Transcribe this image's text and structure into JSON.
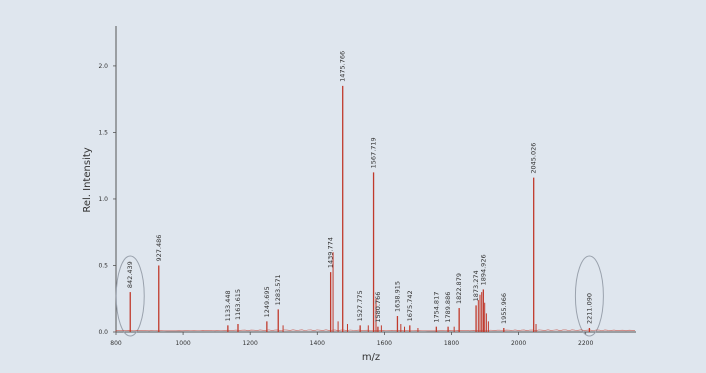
{
  "chart_data": {
    "type": "line",
    "title": "",
    "xlabel": "m/z",
    "ylabel": "Rel. Intensity",
    "xlim": [
      800,
      2350
    ],
    "ylim": [
      0,
      2.3
    ],
    "grid": false,
    "x_ticks": [
      {
        "value": 800,
        "label": "800"
      },
      {
        "value": 1000,
        "label": "1000"
      },
      {
        "value": 1200,
        "label": "1200"
      },
      {
        "value": 1400,
        "label": "1400"
      },
      {
        "value": 1600,
        "label": "1600"
      },
      {
        "value": 1800,
        "label": "1800"
      },
      {
        "value": 2000,
        "label": "2000"
      },
      {
        "value": 2200,
        "label": "2200"
      }
    ],
    "y_ticks": [
      {
        "value": 0.0,
        "label": "0.0"
      },
      {
        "value": 0.5,
        "label": "0.5"
      },
      {
        "value": 1.0,
        "label": "1.0"
      },
      {
        "value": 1.5,
        "label": "1.5"
      },
      {
        "value": 2.0,
        "label": "2.0"
      }
    ],
    "peaks": [
      {
        "mz": 842.439,
        "intensity": 0.3,
        "label": "842.439"
      },
      {
        "mz": 927.486,
        "intensity": 0.5,
        "label": "927.486"
      },
      {
        "mz": 1133.448,
        "intensity": 0.05,
        "label": "1133.448"
      },
      {
        "mz": 1163.615,
        "intensity": 0.06,
        "label": "1163.615"
      },
      {
        "mz": 1249.695,
        "intensity": 0.08,
        "label": "1249.695"
      },
      {
        "mz": 1283.571,
        "intensity": 0.17,
        "label": "1283.571"
      },
      {
        "mz": 1439.774,
        "intensity": 0.45,
        "label": "1439.774"
      },
      {
        "mz": 1475.766,
        "intensity": 1.85,
        "label": "1475.766"
      },
      {
        "mz": 1527.775,
        "intensity": 0.05,
        "label": "1527.775"
      },
      {
        "mz": 1567.719,
        "intensity": 1.2,
        "label": "1567.719"
      },
      {
        "mz": 1580.766,
        "intensity": 0.04,
        "label": "1580.766"
      },
      {
        "mz": 1638.915,
        "intensity": 0.12,
        "label": "1638.915"
      },
      {
        "mz": 1675.742,
        "intensity": 0.05,
        "label": "1675.742"
      },
      {
        "mz": 1754.817,
        "intensity": 0.04,
        "label": "1754.817"
      },
      {
        "mz": 1789.886,
        "intensity": 0.04,
        "label": "1789.886"
      },
      {
        "mz": 1822.879,
        "intensity": 0.18,
        "label": "1822.879"
      },
      {
        "mz": 1873.274,
        "intensity": 0.2,
        "label": "1873.274"
      },
      {
        "mz": 1894.926,
        "intensity": 0.32,
        "label": "1894.926"
      },
      {
        "mz": 1955.966,
        "intensity": 0.03,
        "label": "1955.966"
      },
      {
        "mz": 2045.026,
        "intensity": 1.16,
        "label": "2045.026"
      },
      {
        "mz": 2211.09,
        "intensity": 0.03,
        "label": "2211.090"
      }
    ],
    "minor_peaks": [
      {
        "mz": 1298,
        "intensity": 0.05
      },
      {
        "mz": 1447,
        "intensity": 0.6
      },
      {
        "mz": 1462,
        "intensity": 0.08
      },
      {
        "mz": 1490,
        "intensity": 0.06
      },
      {
        "mz": 1552,
        "intensity": 0.05
      },
      {
        "mz": 1575,
        "intensity": 0.25
      },
      {
        "mz": 1591,
        "intensity": 0.05
      },
      {
        "mz": 1649,
        "intensity": 0.06
      },
      {
        "mz": 1660,
        "intensity": 0.04
      },
      {
        "mz": 1700,
        "intensity": 0.03
      },
      {
        "mz": 1808,
        "intensity": 0.04
      },
      {
        "mz": 1880,
        "intensity": 0.24
      },
      {
        "mz": 1885,
        "intensity": 0.28
      },
      {
        "mz": 1890,
        "intensity": 0.3
      },
      {
        "mz": 1899,
        "intensity": 0.22
      },
      {
        "mz": 1904,
        "intensity": 0.14
      },
      {
        "mz": 1910,
        "intensity": 0.08
      },
      {
        "mz": 2052,
        "intensity": 0.06
      }
    ],
    "highlight_circles": [
      {
        "mz": 842.439
      },
      {
        "mz": 2211.09
      }
    ],
    "colors": {
      "spectrum": "#c0392b",
      "axis": "#555555",
      "background": "#dfe6ee",
      "circle": "#9aa2ad"
    }
  }
}
